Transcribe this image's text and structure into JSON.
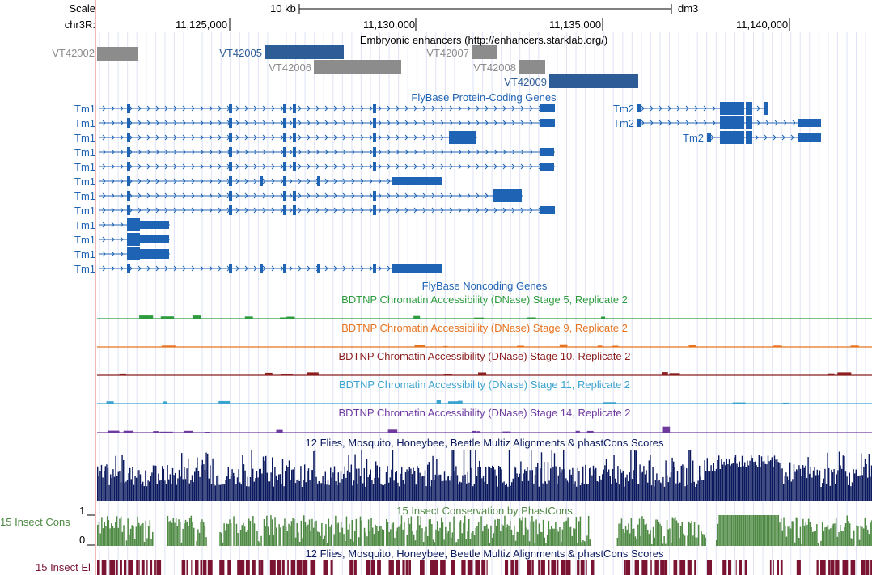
{
  "ruler": {
    "scale_label": "Scale",
    "scale_bar_label": "10 kb",
    "assembly": "dm3",
    "chrom_label": "chr3R:",
    "positions": [
      "11,125,000",
      "11,130,000",
      "11,135,000",
      "11,140,000"
    ]
  },
  "tracks": {
    "enhancers_title": "Embryonic enhancers (http://enhancers.starklab.org/)",
    "enhancers": [
      {
        "name": "VT42002",
        "color": "#8c8c8c"
      },
      {
        "name": "VT42005",
        "color": "#2e5c96"
      },
      {
        "name": "VT42006",
        "color": "#8c8c8c"
      },
      {
        "name": "VT42007",
        "color": "#8c8c8c"
      },
      {
        "name": "VT42008",
        "color": "#8c8c8c"
      },
      {
        "name": "VT42009",
        "color": "#2e5c96"
      }
    ],
    "coding_title": "FlyBase Protein-Coding Genes",
    "gene_color": "#1f63b4",
    "tm1_label": "Tm1",
    "tm2_label": "Tm2",
    "noncoding_title": "FlyBase Noncoding Genes",
    "dnase": [
      {
        "title": "BDTNP Chromatin Accessibility (DNase) Stage 5, Replicate 2",
        "color": "#2e9c3e"
      },
      {
        "title": "BDTNP Chromatin Accessibility (DNase) Stage 9, Replicate 2",
        "color": "#e8731f"
      },
      {
        "title": "BDTNP Chromatin Accessibility (DNase) Stage 10, Replicate 2",
        "color": "#8b1d1d"
      },
      {
        "title": "BDTNP Chromatin Accessibility (DNase) Stage 11, Replicate 2",
        "color": "#3ba3d0"
      },
      {
        "title": "BDTNP Chromatin Accessibility (DNase) Stage 14, Replicate 2",
        "color": "#6e3a9e"
      }
    ],
    "multiz_title": "12 Flies, Mosquito, Honeybee, Beetle Multiz Alignments & phastCons Scores",
    "multiz_color": "#0b1a5e",
    "phastcons_title": "15 Insect Conservation by PhastCons",
    "phastcons_label": "15 Insect Cons",
    "phastcons_color": "#4f8a44",
    "axis_max": "1",
    "axis_min": "0",
    "multiz2_title": "12 Flies, Mosquito, Honeybee, Beetle Multiz Alignments & phastCons Scores",
    "elements_label": "15 Insect El",
    "elements_color": "#7a1432"
  }
}
